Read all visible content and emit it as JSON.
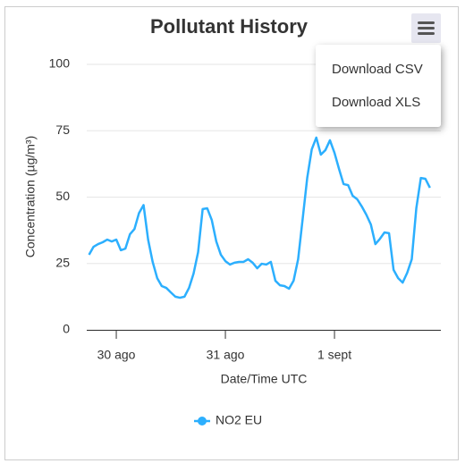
{
  "chart_data": {
    "type": "line",
    "title": "Pollutant History",
    "x_label": "Date/Time UTC",
    "y_label": "Concentration (µg/m³)",
    "x": [
      -6,
      -5,
      -4,
      -3,
      -2,
      -1,
      0,
      1,
      2,
      3,
      4,
      5,
      6,
      7,
      8,
      9,
      10,
      11,
      12,
      13,
      14,
      15,
      16,
      17,
      18,
      19,
      20,
      21,
      22,
      23,
      24,
      25,
      26,
      27,
      28,
      29,
      30,
      31,
      32,
      33,
      34,
      35,
      36,
      37,
      38,
      39,
      40,
      41,
      42,
      43,
      44,
      45,
      46,
      47,
      48,
      49,
      50,
      51,
      52,
      53,
      54,
      55,
      56,
      57,
      58,
      59,
      60,
      61,
      62,
      63,
      64,
      65,
      66,
      67,
      68,
      69
    ],
    "series": [
      {
        "name": "NO2 EU",
        "color": "#2caffe",
        "values": [
          28.3,
          31.3,
          32.3,
          33,
          34,
          33.3,
          34,
          30,
          30.6,
          36,
          38,
          44,
          47,
          34,
          25.6,
          19.5,
          16.5,
          15.8,
          14.1,
          12.5,
          12.1,
          12.5,
          15.8,
          21.2,
          29.3,
          45.5,
          45.8,
          41.4,
          33.3,
          28.3,
          25.9,
          24.6,
          25.3,
          25.6,
          25.6,
          26.6,
          25.3,
          23.2,
          24.9,
          24.6,
          25.6,
          18.5,
          16.8,
          16.5,
          15.5,
          18.5,
          26.6,
          41.8,
          57.2,
          68,
          72.4,
          66,
          67.7,
          71.4,
          66.7,
          60.6,
          54.9,
          54.5,
          50.5,
          49.2,
          46.5,
          43.4,
          39.7,
          32.3,
          34.3,
          36.7,
          36.4,
          22.6,
          19.5,
          17.8,
          21.5,
          26.6,
          45.8,
          57.2,
          56.9,
          53.5
        ]
      }
    ],
    "xlim": [
      -6.5,
      71.4
    ],
    "xticks": [
      {
        "value": 0,
        "label": "30 ago"
      },
      {
        "value": 24,
        "label": "31 ago"
      },
      {
        "value": 48,
        "label": "1 sept"
      }
    ],
    "ylim": [
      0,
      100
    ],
    "yticks": [
      0,
      25,
      50,
      75,
      100
    ],
    "grid": true,
    "legend": "bottom"
  },
  "export_menu": {
    "items": [
      "Download CSV",
      "Download XLS"
    ]
  }
}
